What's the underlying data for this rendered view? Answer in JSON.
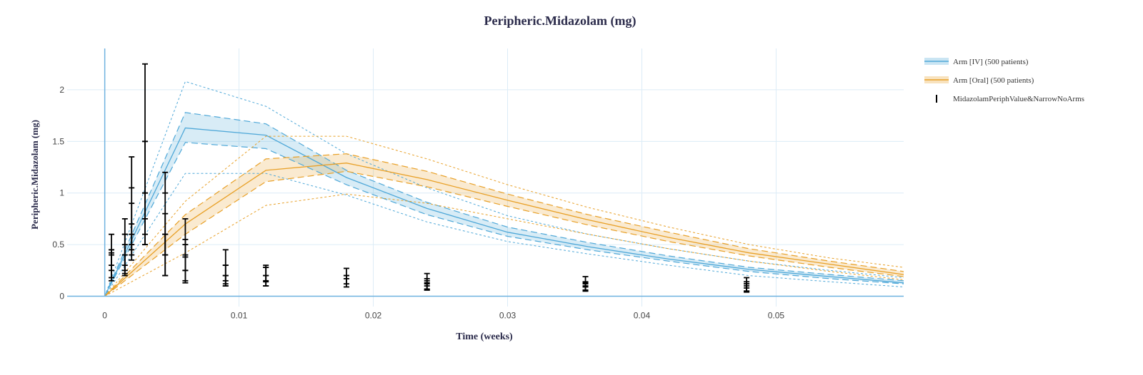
{
  "chart_data": {
    "type": "line",
    "title": "Peripheric.Midazolam (mg)",
    "xlabel": "Time (weeks)",
    "ylabel": "Peripheric.Midazolam (mg)",
    "xlim": [
      -0.0028,
      0.0595
    ],
    "ylim": [
      -0.1,
      2.4
    ],
    "xticks": [
      0,
      0.01,
      0.02,
      0.03,
      0.04,
      0.05
    ],
    "xtick_labels": [
      "0",
      "0.01",
      "0.02",
      "0.03",
      "0.04",
      "0.05"
    ],
    "yticks": [
      0,
      0.5,
      1,
      1.5,
      2
    ],
    "ytick_labels": [
      "0",
      "0.5",
      "1",
      "1.5",
      "2"
    ],
    "grid": true,
    "legend_position": "top-right",
    "colors": {
      "iv": "#4FA8D8",
      "oral": "#E8A027",
      "obs": "#000000",
      "grid": "#dcecf7",
      "axis": "#6fb2e0",
      "title": "#2a2a4a"
    },
    "series": [
      {
        "name": "Arm [IV] (500 patients)",
        "color": "#4FA8D8",
        "x": [
          0,
          0.006,
          0.012,
          0.018,
          0.024,
          0.03,
          0.036,
          0.042,
          0.048,
          0.054,
          0.0595
        ],
        "median": [
          0,
          1.63,
          1.56,
          1.15,
          0.85,
          0.62,
          0.48,
          0.36,
          0.26,
          0.19,
          0.13
        ],
        "q_low": [
          0,
          1.49,
          1.43,
          1.08,
          0.79,
          0.58,
          0.45,
          0.34,
          0.24,
          0.17,
          0.12
        ],
        "q_high": [
          0,
          1.78,
          1.67,
          1.22,
          0.91,
          0.67,
          0.52,
          0.39,
          0.28,
          0.21,
          0.15
        ],
        "pi_low": [
          0,
          1.19,
          1.19,
          0.98,
          0.72,
          0.53,
          0.41,
          0.3,
          0.2,
          0.14,
          0.09
        ],
        "pi_high": [
          0,
          2.08,
          1.84,
          1.38,
          1.05,
          0.78,
          0.6,
          0.46,
          0.34,
          0.25,
          0.18
        ]
      },
      {
        "name": "Arm [Oral] (500 patients)",
        "color": "#E8A027",
        "x": [
          0,
          0.006,
          0.012,
          0.018,
          0.024,
          0.03,
          0.036,
          0.042,
          0.048,
          0.054,
          0.0595
        ],
        "median": [
          0,
          0.7,
          1.22,
          1.29,
          1.13,
          0.93,
          0.74,
          0.57,
          0.42,
          0.31,
          0.21
        ],
        "q_low": [
          0,
          0.6,
          1.11,
          1.21,
          1.06,
          0.87,
          0.69,
          0.53,
          0.39,
          0.28,
          0.19
        ],
        "q_high": [
          0,
          0.79,
          1.33,
          1.38,
          1.21,
          0.99,
          0.79,
          0.62,
          0.46,
          0.34,
          0.24
        ],
        "pi_low": [
          0,
          0.42,
          0.88,
          0.99,
          0.9,
          0.75,
          0.6,
          0.46,
          0.34,
          0.24,
          0.16
        ],
        "pi_high": [
          0,
          0.92,
          1.55,
          1.55,
          1.33,
          1.08,
          0.86,
          0.67,
          0.5,
          0.37,
          0.28
        ]
      }
    ],
    "observations": {
      "name": "MidazolamPeriphValue&NarrowNoArms",
      "color": "#000000",
      "points": [
        {
          "x": 0.0005,
          "y": 0.45,
          "err_low": 0.15,
          "err_high": 0.6
        },
        {
          "x": 0.0005,
          "y": 0.4,
          "err_low": 0.25,
          "err_high": 0.45
        },
        {
          "x": 0.0005,
          "y": 0.3,
          "err_low": 0.18,
          "err_high": 0.42
        },
        {
          "x": 0.0015,
          "y": 0.6,
          "err_low": 0.25,
          "err_high": 0.75
        },
        {
          "x": 0.0015,
          "y": 0.4,
          "err_low": 0.22,
          "err_high": 0.6
        },
        {
          "x": 0.0015,
          "y": 0.3,
          "err_low": 0.2,
          "err_high": 0.5
        },
        {
          "x": 0.002,
          "y": 1.05,
          "err_low": 0.45,
          "err_high": 1.35
        },
        {
          "x": 0.002,
          "y": 0.7,
          "err_low": 0.35,
          "err_high": 0.9
        },
        {
          "x": 0.002,
          "y": 0.5,
          "err_low": 0.4,
          "err_high": 0.6
        },
        {
          "x": 0.003,
          "y": 1.5,
          "err_low": 0.5,
          "err_high": 2.25
        },
        {
          "x": 0.003,
          "y": 1.0,
          "err_low": 0.6,
          "err_high": 1.5
        },
        {
          "x": 0.003,
          "y": 0.75,
          "err_low": 0.5,
          "err_high": 1.0
        },
        {
          "x": 0.0045,
          "y": 1.0,
          "err_low": 0.4,
          "err_high": 1.2
        },
        {
          "x": 0.0045,
          "y": 0.6,
          "err_low": 0.2,
          "err_high": 0.8
        },
        {
          "x": 0.0045,
          "y": 0.4,
          "err_low": 0.2,
          "err_high": 0.6
        },
        {
          "x": 0.006,
          "y": 0.5,
          "err_low": 0.25,
          "err_high": 0.75
        },
        {
          "x": 0.006,
          "y": 0.38,
          "err_low": 0.15,
          "err_high": 0.55
        },
        {
          "x": 0.006,
          "y": 0.25,
          "err_low": 0.13,
          "err_high": 0.4
        },
        {
          "x": 0.009,
          "y": 0.3,
          "err_low": 0.1,
          "err_high": 0.45
        },
        {
          "x": 0.009,
          "y": 0.2,
          "err_low": 0.12,
          "err_high": 0.3
        },
        {
          "x": 0.009,
          "y": 0.15,
          "err_low": 0.1,
          "err_high": 0.2
        },
        {
          "x": 0.012,
          "y": 0.28,
          "err_low": 0.1,
          "err_high": 0.3
        },
        {
          "x": 0.012,
          "y": 0.2,
          "err_low": 0.14,
          "err_high": 0.28
        },
        {
          "x": 0.012,
          "y": 0.15,
          "err_low": 0.1,
          "err_high": 0.2
        },
        {
          "x": 0.018,
          "y": 0.2,
          "err_low": 0.09,
          "err_high": 0.27
        },
        {
          "x": 0.018,
          "y": 0.17,
          "err_low": 0.12,
          "err_high": 0.2
        },
        {
          "x": 0.024,
          "y": 0.15,
          "err_low": 0.07,
          "err_high": 0.22
        },
        {
          "x": 0.024,
          "y": 0.12,
          "err_low": 0.06,
          "err_high": 0.17
        },
        {
          "x": 0.024,
          "y": 0.1,
          "err_low": 0.06,
          "err_high": 0.13
        },
        {
          "x": 0.0358,
          "y": 0.13,
          "err_low": 0.05,
          "err_high": 0.19
        },
        {
          "x": 0.0358,
          "y": 0.1,
          "err_low": 0.05,
          "err_high": 0.14
        },
        {
          "x": 0.0358,
          "y": 0.09,
          "err_low": 0.06,
          "err_high": 0.12
        },
        {
          "x": 0.0478,
          "y": 0.12,
          "err_low": 0.04,
          "err_high": 0.18
        },
        {
          "x": 0.0478,
          "y": 0.1,
          "err_low": 0.05,
          "err_high": 0.14
        },
        {
          "x": 0.0478,
          "y": 0.08,
          "err_low": 0.05,
          "err_high": 0.12
        }
      ]
    }
  }
}
